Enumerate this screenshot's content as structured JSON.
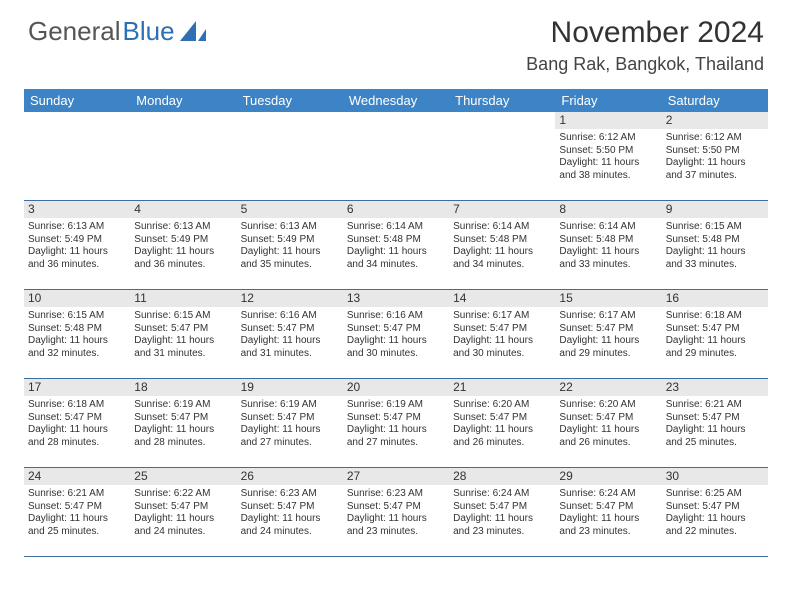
{
  "logo": {
    "text_gray": "General",
    "text_blue": "Blue"
  },
  "title": "November 2024",
  "location": "Bang Rak, Bangkok, Thailand",
  "colors": {
    "header_bg": "#3d84c6",
    "header_text": "#ffffff",
    "daynum_bg": "#e8e8e8",
    "week_border": "#3d6ea0",
    "logo_gray": "#555555",
    "logo_blue": "#2f6fb3",
    "text": "#333333",
    "background": "#ffffff"
  },
  "weekdays": [
    "Sunday",
    "Monday",
    "Tuesday",
    "Wednesday",
    "Thursday",
    "Friday",
    "Saturday"
  ],
  "weeks": [
    [
      {
        "num": "",
        "lines": []
      },
      {
        "num": "",
        "lines": []
      },
      {
        "num": "",
        "lines": []
      },
      {
        "num": "",
        "lines": []
      },
      {
        "num": "",
        "lines": []
      },
      {
        "num": "1",
        "lines": [
          "Sunrise: 6:12 AM",
          "Sunset: 5:50 PM",
          "Daylight: 11 hours and 38 minutes."
        ]
      },
      {
        "num": "2",
        "lines": [
          "Sunrise: 6:12 AM",
          "Sunset: 5:50 PM",
          "Daylight: 11 hours and 37 minutes."
        ]
      }
    ],
    [
      {
        "num": "3",
        "lines": [
          "Sunrise: 6:13 AM",
          "Sunset: 5:49 PM",
          "Daylight: 11 hours and 36 minutes."
        ]
      },
      {
        "num": "4",
        "lines": [
          "Sunrise: 6:13 AM",
          "Sunset: 5:49 PM",
          "Daylight: 11 hours and 36 minutes."
        ]
      },
      {
        "num": "5",
        "lines": [
          "Sunrise: 6:13 AM",
          "Sunset: 5:49 PM",
          "Daylight: 11 hours and 35 minutes."
        ]
      },
      {
        "num": "6",
        "lines": [
          "Sunrise: 6:14 AM",
          "Sunset: 5:48 PM",
          "Daylight: 11 hours and 34 minutes."
        ]
      },
      {
        "num": "7",
        "lines": [
          "Sunrise: 6:14 AM",
          "Sunset: 5:48 PM",
          "Daylight: 11 hours and 34 minutes."
        ]
      },
      {
        "num": "8",
        "lines": [
          "Sunrise: 6:14 AM",
          "Sunset: 5:48 PM",
          "Daylight: 11 hours and 33 minutes."
        ]
      },
      {
        "num": "9",
        "lines": [
          "Sunrise: 6:15 AM",
          "Sunset: 5:48 PM",
          "Daylight: 11 hours and 33 minutes."
        ]
      }
    ],
    [
      {
        "num": "10",
        "lines": [
          "Sunrise: 6:15 AM",
          "Sunset: 5:48 PM",
          "Daylight: 11 hours and 32 minutes."
        ]
      },
      {
        "num": "11",
        "lines": [
          "Sunrise: 6:15 AM",
          "Sunset: 5:47 PM",
          "Daylight: 11 hours and 31 minutes."
        ]
      },
      {
        "num": "12",
        "lines": [
          "Sunrise: 6:16 AM",
          "Sunset: 5:47 PM",
          "Daylight: 11 hours and 31 minutes."
        ]
      },
      {
        "num": "13",
        "lines": [
          "Sunrise: 6:16 AM",
          "Sunset: 5:47 PM",
          "Daylight: 11 hours and 30 minutes."
        ]
      },
      {
        "num": "14",
        "lines": [
          "Sunrise: 6:17 AM",
          "Sunset: 5:47 PM",
          "Daylight: 11 hours and 30 minutes."
        ]
      },
      {
        "num": "15",
        "lines": [
          "Sunrise: 6:17 AM",
          "Sunset: 5:47 PM",
          "Daylight: 11 hours and 29 minutes."
        ]
      },
      {
        "num": "16",
        "lines": [
          "Sunrise: 6:18 AM",
          "Sunset: 5:47 PM",
          "Daylight: 11 hours and 29 minutes."
        ]
      }
    ],
    [
      {
        "num": "17",
        "lines": [
          "Sunrise: 6:18 AM",
          "Sunset: 5:47 PM",
          "Daylight: 11 hours and 28 minutes."
        ]
      },
      {
        "num": "18",
        "lines": [
          "Sunrise: 6:19 AM",
          "Sunset: 5:47 PM",
          "Daylight: 11 hours and 28 minutes."
        ]
      },
      {
        "num": "19",
        "lines": [
          "Sunrise: 6:19 AM",
          "Sunset: 5:47 PM",
          "Daylight: 11 hours and 27 minutes."
        ]
      },
      {
        "num": "20",
        "lines": [
          "Sunrise: 6:19 AM",
          "Sunset: 5:47 PM",
          "Daylight: 11 hours and 27 minutes."
        ]
      },
      {
        "num": "21",
        "lines": [
          "Sunrise: 6:20 AM",
          "Sunset: 5:47 PM",
          "Daylight: 11 hours and 26 minutes."
        ]
      },
      {
        "num": "22",
        "lines": [
          "Sunrise: 6:20 AM",
          "Sunset: 5:47 PM",
          "Daylight: 11 hours and 26 minutes."
        ]
      },
      {
        "num": "23",
        "lines": [
          "Sunrise: 6:21 AM",
          "Sunset: 5:47 PM",
          "Daylight: 11 hours and 25 minutes."
        ]
      }
    ],
    [
      {
        "num": "24",
        "lines": [
          "Sunrise: 6:21 AM",
          "Sunset: 5:47 PM",
          "Daylight: 11 hours and 25 minutes."
        ]
      },
      {
        "num": "25",
        "lines": [
          "Sunrise: 6:22 AM",
          "Sunset: 5:47 PM",
          "Daylight: 11 hours and 24 minutes."
        ]
      },
      {
        "num": "26",
        "lines": [
          "Sunrise: 6:23 AM",
          "Sunset: 5:47 PM",
          "Daylight: 11 hours and 24 minutes."
        ]
      },
      {
        "num": "27",
        "lines": [
          "Sunrise: 6:23 AM",
          "Sunset: 5:47 PM",
          "Daylight: 11 hours and 23 minutes."
        ]
      },
      {
        "num": "28",
        "lines": [
          "Sunrise: 6:24 AM",
          "Sunset: 5:47 PM",
          "Daylight: 11 hours and 23 minutes."
        ]
      },
      {
        "num": "29",
        "lines": [
          "Sunrise: 6:24 AM",
          "Sunset: 5:47 PM",
          "Daylight: 11 hours and 23 minutes."
        ]
      },
      {
        "num": "30",
        "lines": [
          "Sunrise: 6:25 AM",
          "Sunset: 5:47 PM",
          "Daylight: 11 hours and 22 minutes."
        ]
      }
    ]
  ]
}
